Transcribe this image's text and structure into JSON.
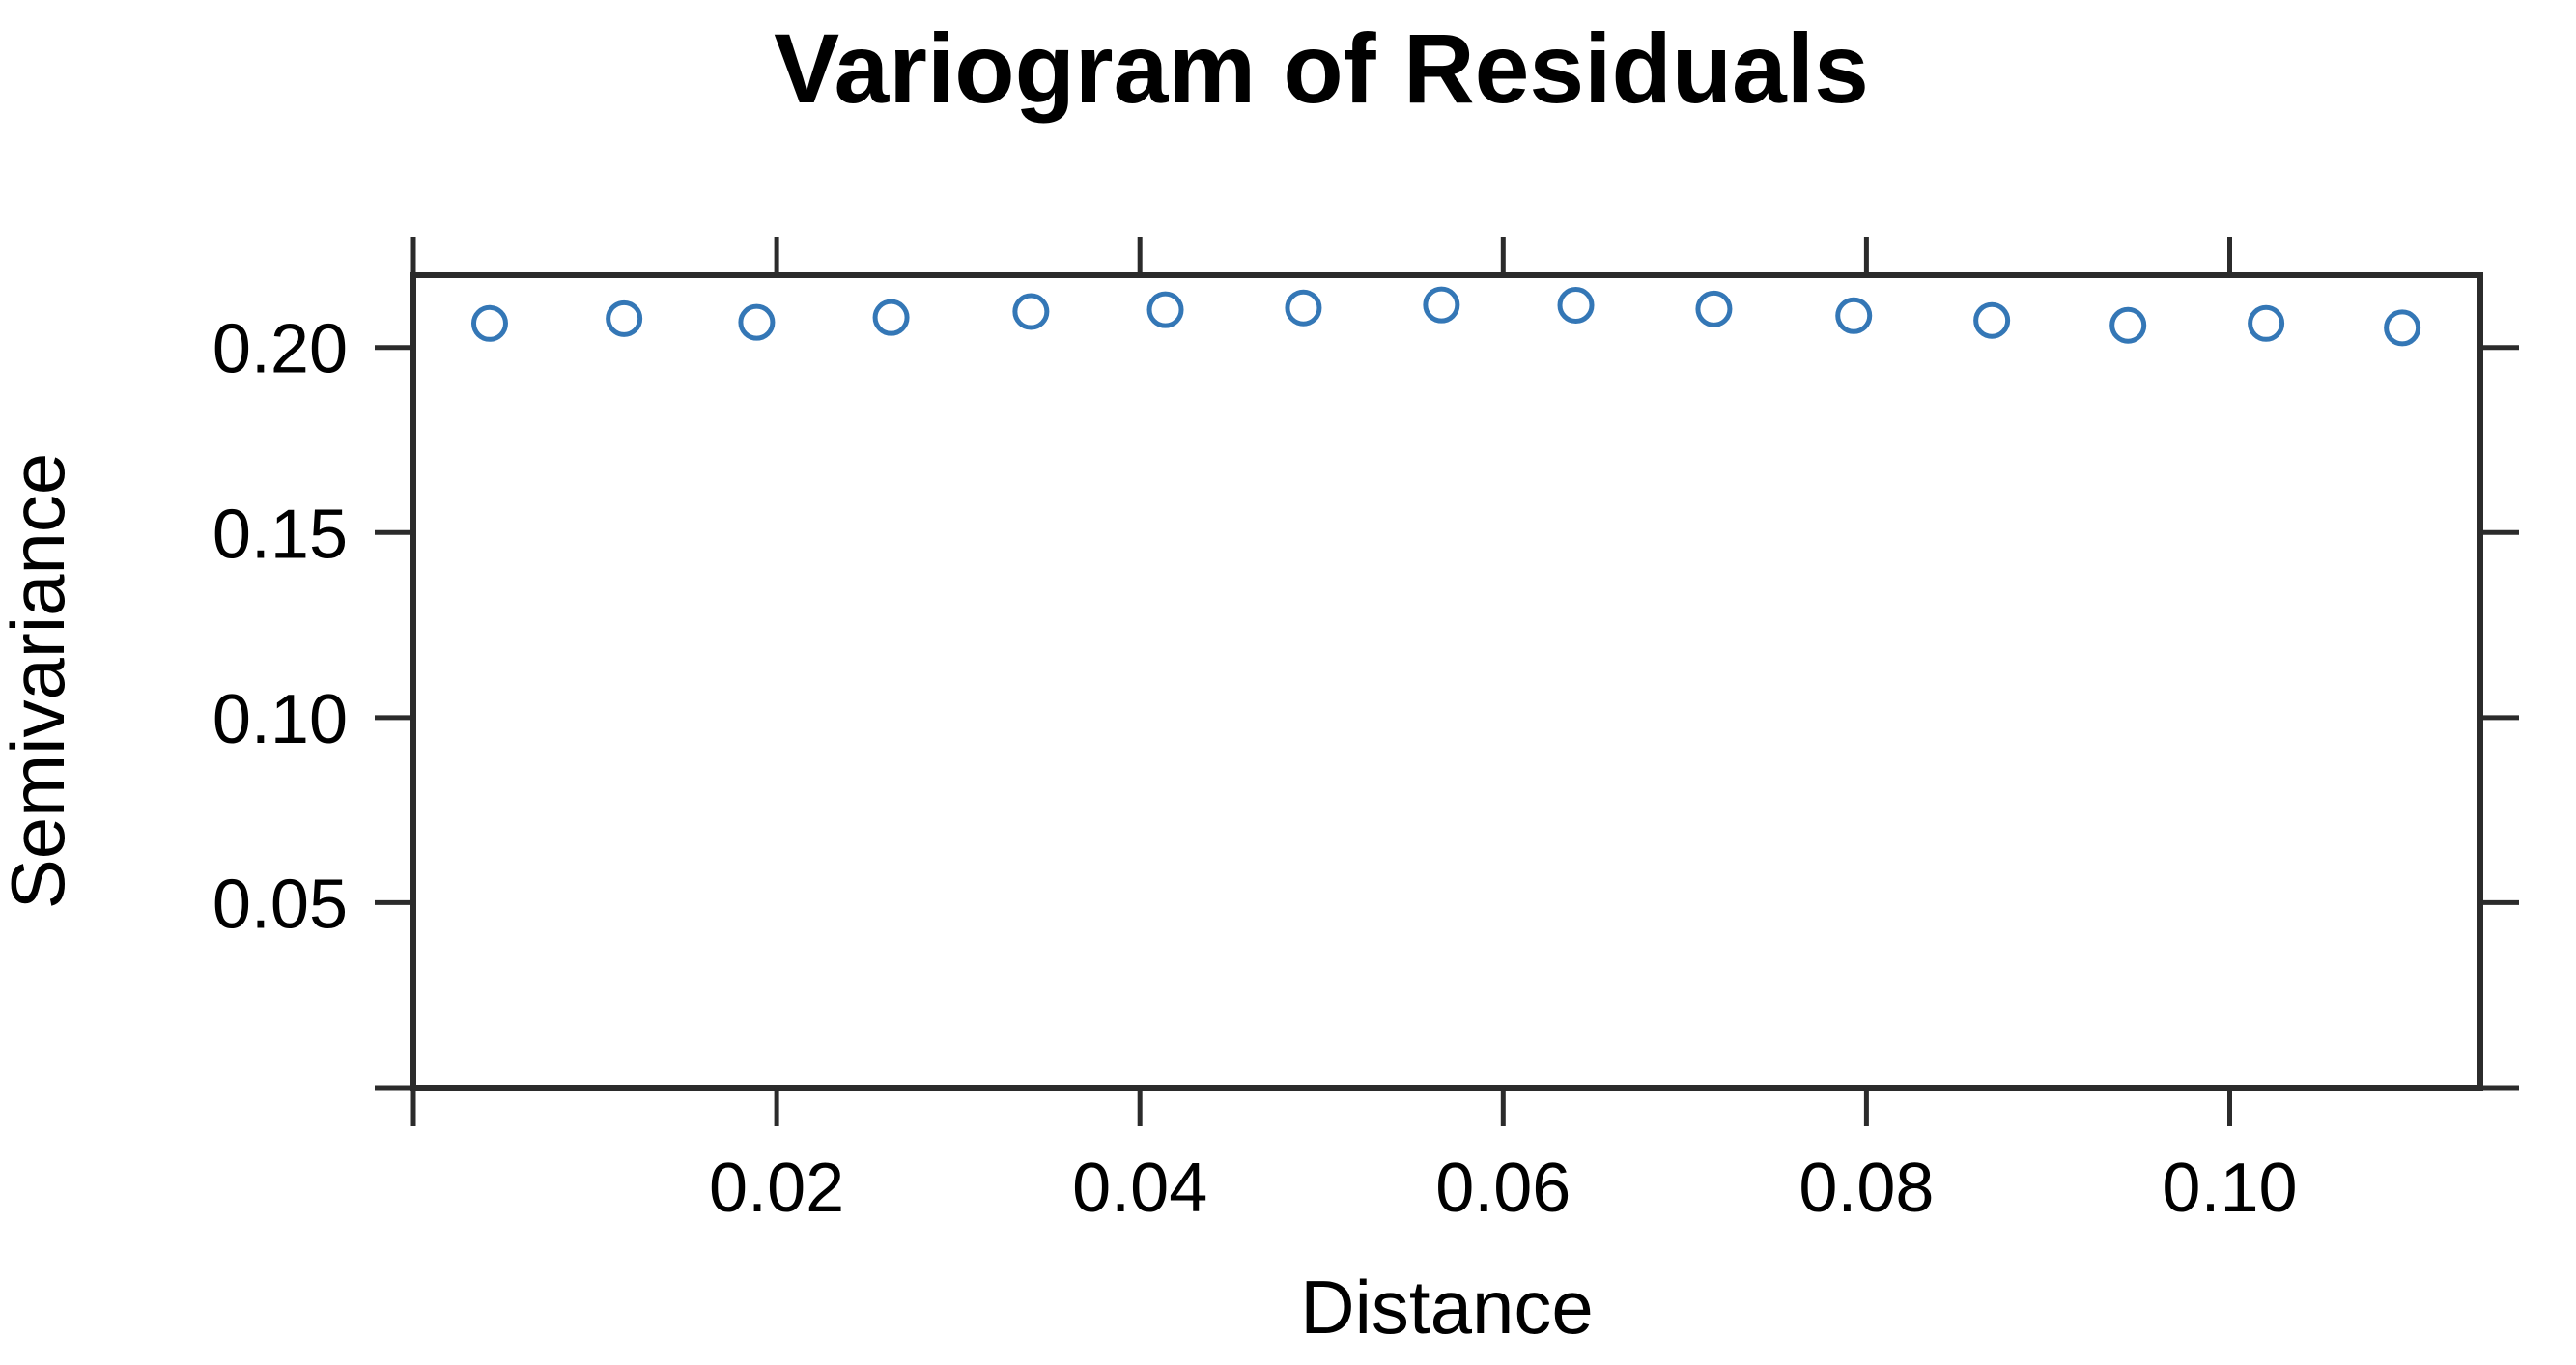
{
  "figure": {
    "background": "#ffffff"
  },
  "chart_data": {
    "type": "scatter",
    "title": "Variogram of Residuals",
    "xlabel": "Distance",
    "ylabel": "Semivariance",
    "x": [
      0.0042,
      0.0116,
      0.0189,
      0.0263,
      0.034,
      0.0414,
      0.049,
      0.0566,
      0.064,
      0.0716,
      0.0793,
      0.0869,
      0.0944,
      0.102,
      0.1095
    ],
    "y": [
      0.2065,
      0.2078,
      0.2068,
      0.2081,
      0.2097,
      0.2102,
      0.2107,
      0.2115,
      0.2114,
      0.2104,
      0.2086,
      0.2073,
      0.206,
      0.2065,
      0.2053
    ],
    "xlim": [
      0,
      0.1138
    ],
    "ylim": [
      0,
      0.2195
    ],
    "x_ticks": [
      0,
      0.02,
      0.04,
      0.06,
      0.08,
      0.1
    ],
    "x_tick_labels": [
      "",
      "0.02",
      "0.04",
      "0.06",
      "0.08",
      "0.10"
    ],
    "y_ticks": [
      0,
      0.05,
      0.1,
      0.15,
      0.2
    ],
    "y_tick_labels": [
      "",
      "0.05",
      "0.10",
      "0.15",
      "0.20"
    ],
    "grid": false,
    "legend_position": "none",
    "marker": "open-circle",
    "ticks_all_four_sides": true,
    "colors": {
      "marker": "#3477b6",
      "axis": "#2b2b2b",
      "text": "#000000"
    }
  }
}
